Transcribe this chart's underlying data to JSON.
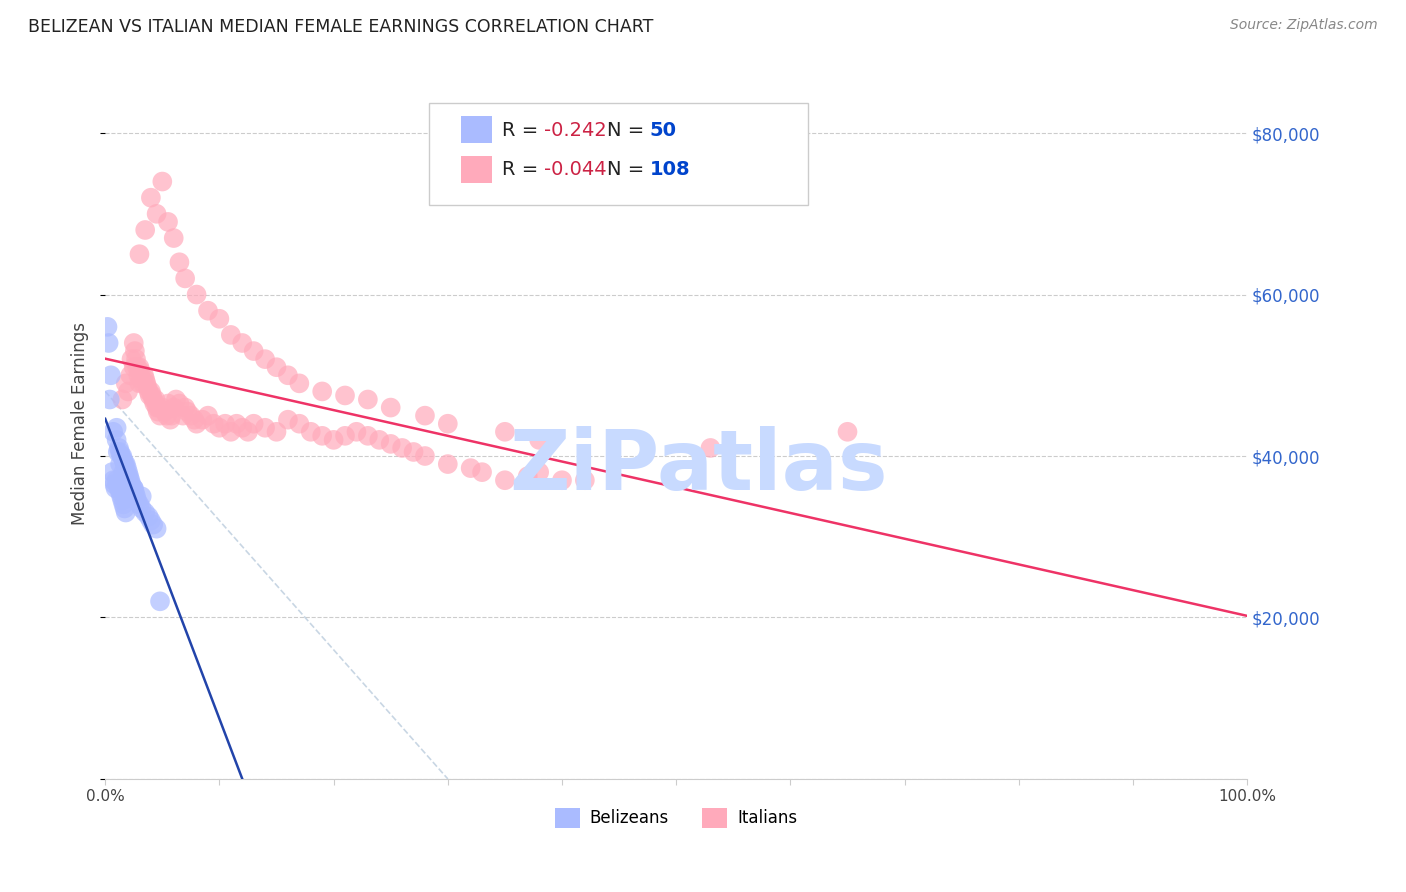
{
  "title": "BELIZEAN VS ITALIAN MEDIAN FEMALE EARNINGS CORRELATION CHART",
  "source": "Source: ZipAtlas.com",
  "ylabel": "Median Female Earnings",
  "belizean_R": -0.242,
  "belizean_N": 50,
  "italian_R": -0.044,
  "italian_N": 108,
  "belizean_color": "#aabbff",
  "italian_color": "#ffaabb",
  "belizean_edge_color": "#6688ee",
  "italian_edge_color": "#ee6688",
  "belizean_trend_color": "#2244aa",
  "italian_trend_color": "#ee3366",
  "watermark": "ZiPatlas",
  "watermark_color": "#c8daff",
  "background_color": "#ffffff",
  "ylim_max": 88000,
  "xlim_max": 100,
  "belizean_x": [
    0.3,
    0.5,
    0.6,
    0.7,
    0.8,
    0.9,
    1.0,
    1.0,
    1.1,
    1.1,
    1.2,
    1.2,
    1.3,
    1.3,
    1.4,
    1.4,
    1.5,
    1.5,
    1.6,
    1.6,
    1.7,
    1.7,
    1.8,
    1.8,
    1.9,
    2.0,
    2.1,
    2.2,
    2.3,
    2.5,
    2.6,
    2.7,
    2.8,
    3.0,
    3.2,
    3.5,
    3.8,
    4.0,
    4.2,
    4.5,
    0.2,
    0.4,
    0.7,
    1.0,
    1.3,
    1.6,
    2.0,
    2.5,
    3.2,
    4.8
  ],
  "belizean_y": [
    54000,
    50000,
    38000,
    37000,
    36500,
    36000,
    42000,
    37000,
    40500,
    36500,
    41000,
    36000,
    40500,
    35500,
    40000,
    35000,
    40000,
    34500,
    39500,
    34000,
    39000,
    33500,
    39000,
    33000,
    38500,
    38000,
    37500,
    37000,
    36500,
    36000,
    35500,
    35000,
    34500,
    34000,
    33500,
    33000,
    32500,
    32000,
    31500,
    31000,
    56000,
    47000,
    43000,
    43500,
    39000,
    38000,
    37500,
    36000,
    35000,
    22000
  ],
  "italian_x": [
    1.5,
    1.8,
    2.0,
    2.2,
    2.3,
    2.5,
    2.5,
    2.6,
    2.7,
    2.8,
    2.9,
    3.0,
    3.0,
    3.1,
    3.2,
    3.3,
    3.4,
    3.5,
    3.6,
    3.7,
    3.8,
    3.9,
    4.0,
    4.1,
    4.2,
    4.3,
    4.4,
    4.5,
    4.6,
    4.7,
    4.8,
    5.0,
    5.2,
    5.4,
    5.5,
    5.7,
    5.8,
    6.0,
    6.2,
    6.5,
    6.8,
    7.0,
    7.2,
    7.5,
    7.8,
    8.0,
    8.5,
    9.0,
    9.5,
    10.0,
    10.5,
    11.0,
    11.5,
    12.0,
    12.5,
    13.0,
    14.0,
    15.0,
    16.0,
    17.0,
    18.0,
    19.0,
    20.0,
    21.0,
    22.0,
    23.0,
    24.0,
    25.0,
    26.0,
    27.0,
    28.0,
    30.0,
    32.0,
    33.0,
    35.0,
    37.0,
    38.0,
    40.0,
    53.0,
    65.0,
    3.0,
    3.5,
    4.0,
    4.5,
    5.0,
    5.5,
    6.0,
    6.5,
    7.0,
    8.0,
    9.0,
    10.0,
    11.0,
    12.0,
    13.0,
    14.0,
    15.0,
    16.0,
    17.0,
    19.0,
    21.0,
    23.0,
    25.0,
    28.0,
    30.0,
    35.0,
    38.0,
    42.0
  ],
  "italian_y": [
    47000,
    49000,
    48000,
    50000,
    52000,
    51000,
    54000,
    53000,
    52000,
    51000,
    50000,
    51000,
    49000,
    50500,
    49500,
    49000,
    50000,
    49500,
    49000,
    48500,
    48000,
    47500,
    48000,
    47500,
    47000,
    46500,
    47000,
    46000,
    45500,
    46000,
    45000,
    46000,
    45500,
    45000,
    46500,
    44500,
    45000,
    46000,
    47000,
    46500,
    45000,
    46000,
    45500,
    45000,
    44500,
    44000,
    44500,
    45000,
    44000,
    43500,
    44000,
    43000,
    44000,
    43500,
    43000,
    44000,
    43500,
    43000,
    44500,
    44000,
    43000,
    42500,
    42000,
    42500,
    43000,
    42500,
    42000,
    41500,
    41000,
    40500,
    40000,
    39000,
    38500,
    38000,
    37000,
    37500,
    38000,
    37000,
    41000,
    43000,
    65000,
    68000,
    72000,
    70000,
    74000,
    69000,
    67000,
    64000,
    62000,
    60000,
    58000,
    57000,
    55000,
    54000,
    53000,
    52000,
    51000,
    50000,
    49000,
    48000,
    47500,
    47000,
    46000,
    45000,
    44000,
    43000,
    42000,
    37000
  ],
  "ref_line_x": [
    0,
    30
  ],
  "ref_line_y": [
    48000,
    0
  ],
  "legend_R_text_color": "#cc2244",
  "legend_N_text_color": "#0044cc",
  "legend_R_label_color": "#333333"
}
